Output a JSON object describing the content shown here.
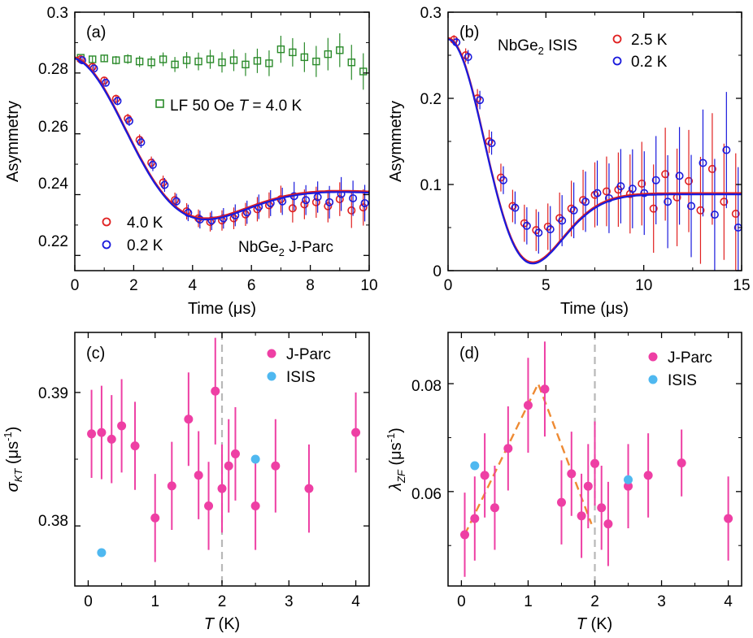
{
  "chart_data": [
    {
      "panel": "(a)",
      "type": "scatter",
      "xlabel": "Time (μs)",
      "ylabel": "Asymmetry",
      "xlim": [
        0,
        10
      ],
      "ylim": [
        0.215,
        0.3
      ],
      "xticks": [
        0,
        2,
        4,
        6,
        8,
        10
      ],
      "yticks": [
        0.22,
        0.24,
        0.26,
        0.28,
        0.3
      ],
      "annotation": "NbGe₂ J-Parc",
      "legend": [
        {
          "label": "LF 50 Oe T = 4.0 K",
          "color": "#2a8a2a",
          "marker": "square"
        },
        {
          "label": "4.0 K",
          "color": "#e02020",
          "marker": "circle"
        },
        {
          "label": "0.2 K",
          "color": "#1a1adc",
          "marker": "circle"
        }
      ],
      "series": [
        {
          "name": "LF 50 Oe T = 4.0 K",
          "x": [
            0.2,
            0.6,
            1.0,
            1.4,
            1.8,
            2.2,
            2.6,
            3.0,
            3.4,
            3.8,
            4.2,
            4.6,
            5.0,
            5.4,
            5.8,
            6.2,
            6.6,
            7.0,
            7.4,
            7.8,
            8.2,
            8.6,
            9.0,
            9.4,
            9.8
          ],
          "y": [
            0.285,
            0.2845,
            0.2848,
            0.2842,
            0.2846,
            0.2838,
            0.2835,
            0.2845,
            0.2828,
            0.2842,
            0.2838,
            0.2845,
            0.2835,
            0.2842,
            0.2828,
            0.284,
            0.2832,
            0.2878,
            0.2868,
            0.2852,
            0.2838,
            0.2862,
            0.2875,
            0.2835,
            0.2805
          ]
        },
        {
          "name": "4.0 K",
          "x": [
            0.2,
            0.6,
            1.0,
            1.4,
            1.8,
            2.2,
            2.6,
            3.0,
            3.4,
            3.8,
            4.2,
            4.6,
            5.0,
            5.4,
            5.8,
            6.2,
            6.6,
            7.0,
            7.4,
            7.8,
            8.2,
            8.6,
            9.0,
            9.4,
            9.8
          ],
          "y": [
            0.2845,
            0.282,
            0.2775,
            0.2715,
            0.265,
            0.258,
            0.2505,
            0.244,
            0.2382,
            0.2345,
            0.2322,
            0.231,
            0.2315,
            0.2322,
            0.2335,
            0.2352,
            0.2365,
            0.2385,
            0.2355,
            0.2368,
            0.2375,
            0.2362,
            0.2385,
            0.2348,
            0.2358
          ]
        },
        {
          "name": "0.2 K",
          "x": [
            0.25,
            0.65,
            1.05,
            1.45,
            1.85,
            2.25,
            2.65,
            3.05,
            3.45,
            3.85,
            4.25,
            4.65,
            5.05,
            5.45,
            5.85,
            6.25,
            6.65,
            7.05,
            7.45,
            7.85,
            8.25,
            8.65,
            9.05,
            9.45,
            9.85
          ],
          "y": [
            0.2842,
            0.2815,
            0.2768,
            0.2708,
            0.2642,
            0.2572,
            0.2498,
            0.2432,
            0.2378,
            0.234,
            0.2318,
            0.2315,
            0.2322,
            0.2332,
            0.2342,
            0.236,
            0.2372,
            0.2378,
            0.2395,
            0.2382,
            0.2392,
            0.2375,
            0.2402,
            0.2388,
            0.2372
          ]
        }
      ]
    },
    {
      "panel": "(b)",
      "type": "scatter",
      "xlabel": "Time (μs)",
      "ylabel": "Asymmetry",
      "xlim": [
        0,
        15
      ],
      "ylim": [
        0,
        0.3
      ],
      "xticks": [
        0,
        5,
        10,
        15
      ],
      "yticks": [
        0,
        0.1,
        0.2,
        0.3
      ],
      "annotation": "NbGe₂ ISIS",
      "legend": [
        {
          "label": "2.5 K",
          "color": "#e02020",
          "marker": "circle"
        },
        {
          "label": "0.2 K",
          "color": "#1a1adc",
          "marker": "circle"
        }
      ],
      "series": [
        {
          "name": "2.5 K",
          "x": [
            0.3,
            0.9,
            1.5,
            2.1,
            2.7,
            3.3,
            3.9,
            4.5,
            5.1,
            5.7,
            6.3,
            6.9,
            7.5,
            8.1,
            8.7,
            9.3,
            9.9,
            10.5,
            11.1,
            11.7,
            12.3,
            12.9,
            13.5,
            14.1,
            14.7
          ],
          "y": [
            0.268,
            0.25,
            0.2,
            0.15,
            0.108,
            0.075,
            0.055,
            0.047,
            0.051,
            0.061,
            0.072,
            0.082,
            0.088,
            0.092,
            0.094,
            0.089,
            0.101,
            0.072,
            0.112,
            0.085,
            0.104,
            0.07,
            0.118,
            0.08,
            0.066
          ]
        },
        {
          "name": "0.2 K",
          "x": [
            0.3,
            0.9,
            1.5,
            2.1,
            2.7,
            3.3,
            3.9,
            4.5,
            5.1,
            5.7,
            6.3,
            6.9,
            7.5,
            8.1,
            8.7,
            9.3,
            9.9,
            10.5,
            11.1,
            11.7,
            12.3,
            12.9,
            13.5,
            14.1,
            14.7
          ],
          "y": [
            0.265,
            0.248,
            0.198,
            0.148,
            0.105,
            0.073,
            0.052,
            0.044,
            0.048,
            0.058,
            0.07,
            0.08,
            0.09,
            0.084,
            0.098,
            0.095,
            0.09,
            0.105,
            0.08,
            0.11,
            0.075,
            0.125,
            0.065,
            0.14,
            0.05
          ]
        }
      ]
    },
    {
      "panel": "(c)",
      "type": "scatter",
      "xlabel": "T (K)",
      "ylabel": "σKT (μs⁻¹)",
      "xlim": [
        -0.2,
        4.2
      ],
      "ylim": [
        0.3755,
        0.3945
      ],
      "xticks": [
        0,
        1,
        2,
        3,
        4
      ],
      "yticks": [
        0.38,
        0.39
      ],
      "vline": 2,
      "legend": [
        {
          "label": "J-Parc",
          "color": "#ee3fa4",
          "marker": "filled-circle"
        },
        {
          "label": "ISIS",
          "color": "#4fb8f0",
          "marker": "filled-circle"
        }
      ],
      "series": [
        {
          "name": "J-Parc",
          "x": [
            0.05,
            0.2,
            0.35,
            0.5,
            0.7,
            1.0,
            1.25,
            1.5,
            1.65,
            1.8,
            1.9,
            2.0,
            2.1,
            2.2,
            2.5,
            2.8,
            3.3,
            4.0
          ],
          "y": [
            0.3869,
            0.387,
            0.3865,
            0.3875,
            0.386,
            0.3806,
            0.383,
            0.388,
            0.3838,
            0.3815,
            0.3901,
            0.3828,
            0.3845,
            0.3854,
            0.3815,
            0.3845,
            0.3828,
            0.387
          ],
          "err": [
            0.0033,
            0.0035,
            0.0033,
            0.0035,
            0.0033,
            0.0033,
            0.0033,
            0.0035,
            0.0033,
            0.0033,
            0.004,
            0.0033,
            0.0035,
            0.0035,
            0.0033,
            0.0035,
            0.0033,
            0.003
          ]
        },
        {
          "name": "ISIS",
          "x": [
            0.2,
            2.5
          ],
          "y": [
            0.378,
            0.385
          ],
          "err": [
            0,
            0
          ]
        }
      ]
    },
    {
      "panel": "(d)",
      "type": "scatter",
      "xlabel": "T (K)",
      "ylabel": "λZF (μs⁻¹)",
      "xlim": [
        -0.2,
        4.2
      ],
      "ylim": [
        0.0425,
        0.0895
      ],
      "xticks": [
        0,
        1,
        2,
        3,
        4
      ],
      "yticks": [
        0.06,
        0.08
      ],
      "vline": 2,
      "fit_line": {
        "x": [
          0.05,
          1.15,
          1.95
        ],
        "y": [
          0.052,
          0.08,
          0.054
        ]
      },
      "legend": [
        {
          "label": "J-Parc",
          "color": "#ee3fa4",
          "marker": "filled-circle"
        },
        {
          "label": "ISIS",
          "color": "#4fb8f0",
          "marker": "filled-circle"
        }
      ],
      "series": [
        {
          "name": "J-Parc",
          "x": [
            0.05,
            0.2,
            0.35,
            0.5,
            0.7,
            1.0,
            1.25,
            1.5,
            1.65,
            1.8,
            1.9,
            2.0,
            2.1,
            2.2,
            2.5,
            2.8,
            3.3,
            4.0
          ],
          "y": [
            0.052,
            0.055,
            0.063,
            0.057,
            0.068,
            0.076,
            0.079,
            0.058,
            0.0633,
            0.0555,
            0.061,
            0.0652,
            0.057,
            0.054,
            0.061,
            0.063,
            0.0653,
            0.055
          ],
          "err": [
            0.0078,
            0.0078,
            0.0078,
            0.0078,
            0.0078,
            0.0088,
            0.0088,
            0.0078,
            0.0078,
            0.0078,
            0.0078,
            0.0078,
            0.0078,
            0.0078,
            0.0078,
            0.0078,
            0.0062,
            0.0078
          ]
        },
        {
          "name": "ISIS",
          "x": [
            0.2,
            2.5
          ],
          "y": [
            0.0648,
            0.0622
          ],
          "err": [
            0,
            0
          ]
        }
      ]
    }
  ],
  "labels": {
    "a": {
      "panel": "(a)",
      "xlabel": "Time (μs)",
      "ylabel": "Asymmetry",
      "lf": "LF 50 Oe",
      "lf_T": "T",
      "lf_val": "= 4.0 K",
      "ann": "NbGe",
      "ann_sub": "2",
      "ann_rest": " J-Parc",
      "leg1": "4.0 K",
      "leg2": "0.2 K",
      "xt": [
        "0",
        "2",
        "4",
        "6",
        "8",
        "10"
      ],
      "yt": [
        "0.3",
        "0.28",
        "0.26",
        "0.24",
        "0.22"
      ]
    },
    "b": {
      "panel": "(b)",
      "xlabel": "Time (μs)",
      "ylabel": "Asymmetry",
      "ann": "NbGe",
      "ann_sub": "2",
      "ann_rest": " ISIS",
      "leg1": "2.5 K",
      "leg2": "0.2 K",
      "xt": [
        "0",
        "5",
        "10",
        "15"
      ],
      "yt": [
        "0.3",
        "0.2",
        "0.1",
        "0"
      ]
    },
    "c": {
      "panel": "(c)",
      "xlabel_T": "T",
      "xlabel_unit": " (K)",
      "ylabel_sym": "σ",
      "ylabel_sub": "KT",
      "ylabel_unit": " (μs",
      "ylabel_sup": "-1",
      "ylabel_close": ")",
      "leg1": "J-Parc",
      "leg2": "ISIS",
      "xt": [
        "0",
        "1",
        "2",
        "3",
        "4"
      ],
      "yt": [
        "0.39",
        "0.38"
      ]
    },
    "d": {
      "panel": "(d)",
      "xlabel_T": "T",
      "xlabel_unit": " (K)",
      "ylabel_sym": "λ",
      "ylabel_sub": "ZF",
      "ylabel_unit": " (μs",
      "ylabel_sup": "-1",
      "ylabel_close": ")",
      "leg1": "J-Parc",
      "leg2": "ISIS",
      "xt": [
        "0",
        "1",
        "2",
        "3",
        "4"
      ],
      "yt": [
        "0.08",
        "0.06"
      ]
    }
  },
  "colors": {
    "red": "#e02020",
    "blue": "#1a1adc",
    "green": "#2a8a2a",
    "pink": "#ee3fa4",
    "cyan": "#4fb8f0",
    "orange": "#ee8a33",
    "gray": "#b8b8b8"
  }
}
